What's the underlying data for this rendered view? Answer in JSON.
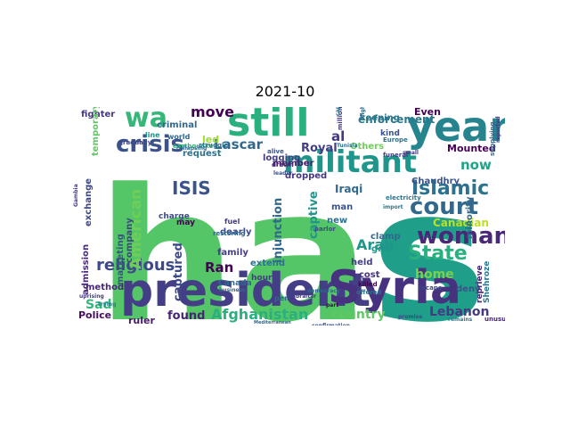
{
  "title": "2021-10",
  "chart_data": {
    "type": "wordcloud",
    "title": "2021-10",
    "words": [
      {
        "text": "has",
        "color": "#55c667"
      },
      {
        "text": "president",
        "color": "#433e85"
      },
      {
        "text": "Syria",
        "color": "#46327e"
      },
      {
        "text": "year",
        "color": "#25848e"
      },
      {
        "text": "still",
        "color": "#2ab07f"
      },
      {
        "text": "militant",
        "color": "#1f968b"
      },
      {
        "text": "crisis",
        "color": "#3b528b"
      },
      {
        "text": "wa",
        "color": "#35b779"
      },
      {
        "text": "court",
        "color": "#31688e"
      },
      {
        "text": "woman",
        "color": "#482878"
      },
      {
        "text": "Islamic",
        "color": "#2c728e"
      },
      {
        "text": "State",
        "color": "#2ab07f"
      },
      {
        "text": "religious",
        "color": "#3e4989"
      },
      {
        "text": "ISIS",
        "color": "#3b528b"
      },
      {
        "text": "American",
        "color": "#6ece58"
      },
      {
        "text": "Afghanistan",
        "color": "#2ab07f"
      },
      {
        "text": "Lebanon",
        "color": "#443983"
      },
      {
        "text": "Arab",
        "color": "#1f968b"
      },
      {
        "text": "country",
        "color": "#5ec962"
      },
      {
        "text": "home",
        "color": "#7ad151"
      },
      {
        "text": "move",
        "color": "#440154"
      },
      {
        "text": "Lascar",
        "color": "#31688e"
      },
      {
        "text": "Ran",
        "color": "#440154"
      },
      {
        "text": "found",
        "color": "#482475"
      },
      {
        "text": "Sad",
        "color": "#35b779"
      },
      {
        "text": "captured",
        "color": "#3e4989"
      },
      {
        "text": "now",
        "color": "#20a386"
      },
      {
        "text": "al",
        "color": "#453781"
      },
      {
        "text": "Iraqi",
        "color": "#31688e"
      },
      {
        "text": "Royal",
        "color": "#433e85"
      },
      {
        "text": "enforcement",
        "color": "#2a788e"
      },
      {
        "text": "Canadian",
        "color": "#bddf26"
      },
      {
        "text": "injunction",
        "color": "#31688e"
      },
      {
        "text": "captive",
        "color": "#1f968b"
      },
      {
        "text": "company",
        "color": "#414487"
      },
      {
        "text": "marketing",
        "color": "#3b528b"
      },
      {
        "text": "fighter",
        "color": "#443983"
      },
      {
        "text": "exchange",
        "color": "#3e4989"
      },
      {
        "text": "admission",
        "color": "#472c7a"
      },
      {
        "text": "method",
        "color": "#482878"
      },
      {
        "text": "Police",
        "color": "#470e61"
      },
      {
        "text": "ruler",
        "color": "#481b6d"
      },
      {
        "text": "minority",
        "color": "#31688e"
      },
      {
        "text": "deny",
        "color": "#3b528b"
      },
      {
        "text": "held",
        "color": "#433e85"
      },
      {
        "text": "cost",
        "color": "#46327e"
      },
      {
        "text": "Mounted",
        "color": "#440154"
      },
      {
        "text": "logging",
        "color": "#433e85"
      },
      {
        "text": "extend",
        "color": "#2c728e"
      },
      {
        "text": "member",
        "color": "#481b6d"
      },
      {
        "text": "dropped",
        "color": "#453781"
      },
      {
        "text": "Chaudhry",
        "color": "#3b528b"
      },
      {
        "text": "clamp",
        "color": "#31688e"
      },
      {
        "text": "grid",
        "color": "#1f968b"
      },
      {
        "text": "keeping",
        "color": "#2a788e"
      },
      {
        "text": "Even",
        "color": "#440154"
      },
      {
        "text": "request",
        "color": "#2c728e"
      },
      {
        "text": "dearly",
        "color": "#3e4989"
      },
      {
        "text": "family",
        "color": "#433e85"
      },
      {
        "text": "Canada",
        "color": "#31688e"
      },
      {
        "text": "Others",
        "color": "#6ece58"
      },
      {
        "text": "new",
        "color": "#2c728e"
      },
      {
        "text": "man",
        "color": "#3b528b"
      },
      {
        "text": "reprieve",
        "color": "#482878"
      },
      {
        "text": "Shehroze",
        "color": "#2a788e"
      },
      {
        "text": "hour",
        "color": "#443983"
      },
      {
        "text": "criminal",
        "color": "#31688e"
      },
      {
        "text": "charge",
        "color": "#3e4989"
      },
      {
        "text": "may",
        "color": "#440154"
      },
      {
        "text": "led",
        "color": "#a0da39"
      },
      {
        "text": "kind",
        "color": "#3b528b"
      },
      {
        "text": "world",
        "color": "#31688e"
      },
      {
        "text": "line",
        "color": "#1f968b"
      },
      {
        "text": "Europe",
        "color": "#2c728e"
      },
      {
        "text": "million",
        "color": "#453781"
      },
      {
        "text": "fuel",
        "color": "#443983"
      },
      {
        "text": "electricity",
        "color": "#2a788e"
      },
      {
        "text": "restoring",
        "color": "#31688e"
      },
      {
        "text": "alive",
        "color": "#3b528b"
      },
      {
        "text": "drawn",
        "color": "#482878"
      },
      {
        "text": "funeral",
        "color": "#433e85"
      },
      {
        "text": "capture",
        "color": "#2c728e"
      },
      {
        "text": "fighting",
        "color": "#31688e"
      },
      {
        "text": "promise",
        "color": "#3e4989"
      },
      {
        "text": "remains",
        "color": "#2a788e"
      },
      {
        "text": "unusual",
        "color": "#482878"
      },
      {
        "text": "confirmation",
        "color": "#3b528b"
      },
      {
        "text": "democracy",
        "color": "#31688e"
      },
      {
        "text": "killed",
        "color": "#440154"
      },
      {
        "text": "offered",
        "color": "#2c728e"
      },
      {
        "text": "escape",
        "color": "#3e4989"
      },
      {
        "text": "supplying",
        "color": "#31688e"
      },
      {
        "text": "reported",
        "color": "#453781"
      },
      {
        "text": "uprising",
        "color": "#433e85"
      },
      {
        "text": "trying",
        "color": "#2a788e"
      },
      {
        "text": "business",
        "color": "#31688e"
      },
      {
        "text": "temporary",
        "color": "#5ec962"
      },
      {
        "text": "gradually",
        "color": "#3e4989"
      },
      {
        "text": "earthquake",
        "color": "#35b779"
      },
      {
        "text": "struggle",
        "color": "#2c728e"
      },
      {
        "text": "collapsing",
        "color": "#31688e"
      },
      {
        "text": "Gambia",
        "color": "#433e85"
      },
      {
        "text": "Tunisia",
        "color": "#2c728e"
      },
      {
        "text": "leader",
        "color": "#3b528b"
      },
      {
        "text": "part",
        "color": "#440154"
      },
      {
        "text": "per",
        "color": "#31688e"
      },
      {
        "text": "parlor",
        "color": "#3e4989"
      },
      {
        "text": "import",
        "color": "#2a788e"
      },
      {
        "text": "small",
        "color": "#453781"
      },
      {
        "text": "Mediterranean",
        "color": "#31688e"
      },
      {
        "text": "Gibraltar",
        "color": "#433e85"
      }
    ]
  }
}
